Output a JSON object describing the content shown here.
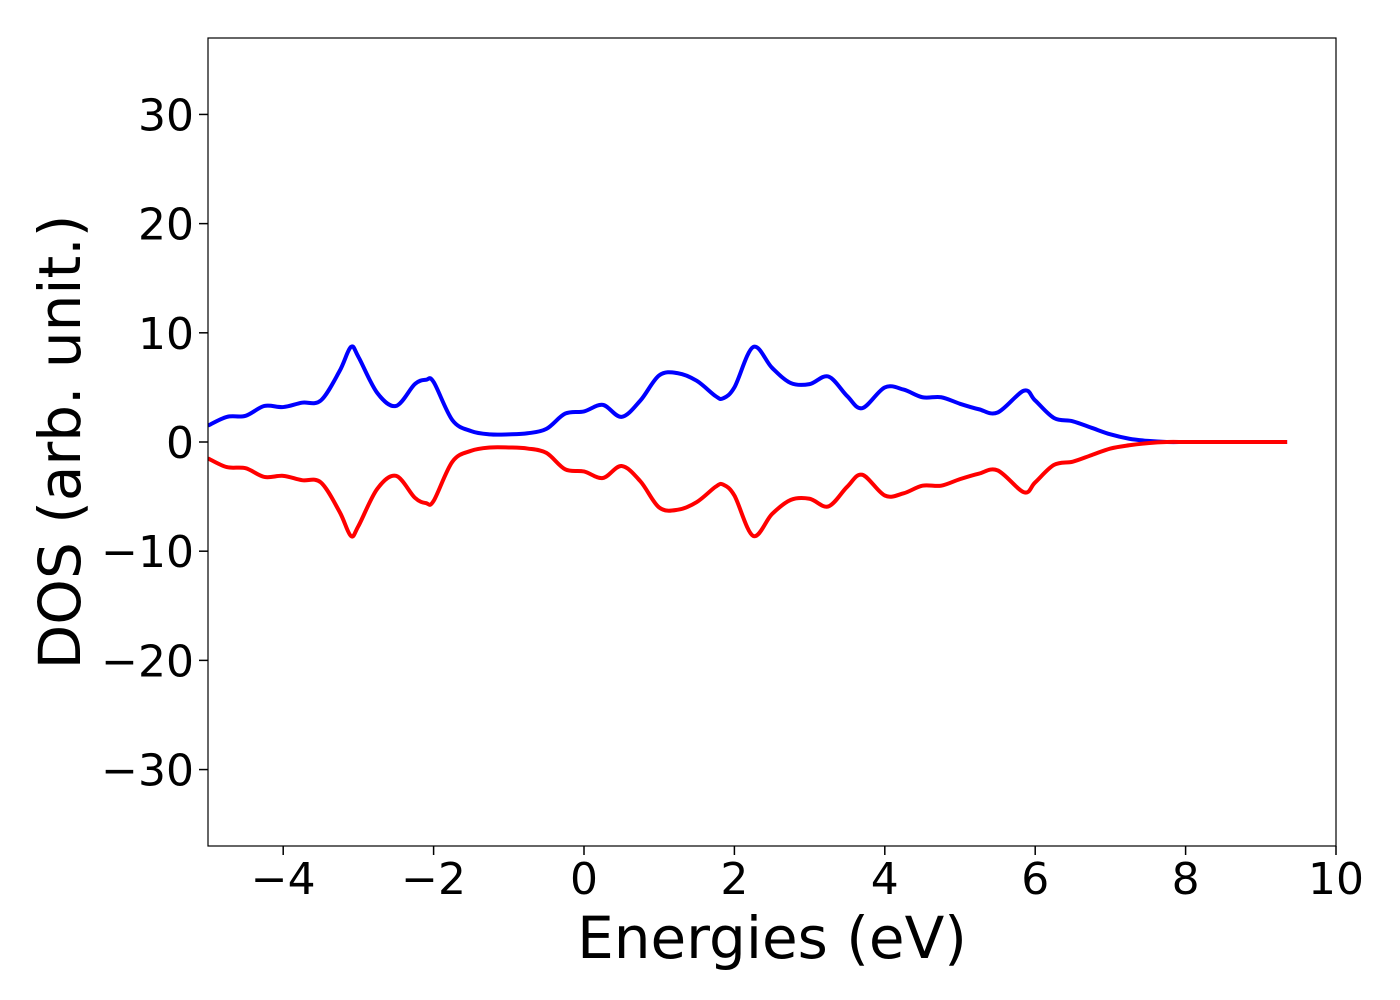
{
  "chart_data": {
    "type": "line",
    "xlabel": "Energies (eV)",
    "ylabel": "DOS (arb. unit.)",
    "x": [
      -5,
      -4.75,
      -4.5,
      -4.25,
      -4,
      -3.75,
      -3.5,
      -3.25,
      -3.1,
      -3,
      -2.75,
      -2.5,
      -2.25,
      -2.1,
      -2,
      -1.75,
      -1.5,
      -1.25,
      -1,
      -0.75,
      -0.5,
      -0.25,
      0,
      0.25,
      0.5,
      0.75,
      1,
      1.25,
      1.5,
      1.75,
      1.85,
      2,
      2.25,
      2.5,
      2.75,
      3,
      3.25,
      3.5,
      3.7,
      4,
      4.25,
      4.5,
      4.75,
      5,
      5.25,
      5.5,
      5.85,
      6,
      6.25,
      6.5,
      6.75,
      7,
      7.25,
      7.5,
      7.75,
      8,
      8.25,
      8.5,
      8.75,
      9,
      9.25,
      9.35
    ],
    "series": [
      {
        "color": "#0000ff",
        "values": [
          1.5,
          2.3,
          2.4,
          3.3,
          3.2,
          3.6,
          3.8,
          6.5,
          8.7,
          7.8,
          4.5,
          3.3,
          5.3,
          5.7,
          5.5,
          2.0,
          1.0,
          0.7,
          0.7,
          0.8,
          1.2,
          2.6,
          2.8,
          3.4,
          2.3,
          3.8,
          6.1,
          6.3,
          5.6,
          4.2,
          4.0,
          5.0,
          8.7,
          6.8,
          5.4,
          5.3,
          6.0,
          4.2,
          3.1,
          5.0,
          4.8,
          4.1,
          4.1,
          3.5,
          3.0,
          2.7,
          4.7,
          3.8,
          2.2,
          1.9,
          1.3,
          0.7,
          0.3,
          0.1,
          0,
          0,
          0,
          0,
          0,
          0,
          0,
          0
        ]
      },
      {
        "color": "#ff0000",
        "values": [
          -1.5,
          -2.3,
          -2.4,
          -3.2,
          -3.1,
          -3.5,
          -3.7,
          -6.4,
          -8.6,
          -7.7,
          -4.3,
          -3.1,
          -5.1,
          -5.6,
          -5.4,
          -1.8,
          -0.8,
          -0.5,
          -0.5,
          -0.6,
          -1.0,
          -2.5,
          -2.7,
          -3.3,
          -2.2,
          -3.6,
          -6.0,
          -6.2,
          -5.5,
          -4.1,
          -3.9,
          -4.9,
          -8.6,
          -6.6,
          -5.3,
          -5.2,
          -5.9,
          -4.1,
          -3.0,
          -4.9,
          -4.7,
          -4.0,
          -4.0,
          -3.4,
          -2.9,
          -2.6,
          -4.6,
          -3.7,
          -2.1,
          -1.8,
          -1.2,
          -0.6,
          -0.3,
          -0.1,
          0,
          0,
          0,
          0,
          0,
          0,
          0,
          0
        ]
      }
    ],
    "xlim": [
      -5,
      10
    ],
    "ylim": [
      -37,
      37
    ],
    "xticks": [
      {
        "value": -4,
        "label": "−4"
      },
      {
        "value": -2,
        "label": "−2"
      },
      0,
      2,
      4,
      6,
      8,
      10
    ],
    "yticks": [
      {
        "value": -30,
        "label": "−30"
      },
      {
        "value": -20,
        "label": "−20"
      },
      {
        "value": -10,
        "label": "−10"
      },
      0,
      10,
      20,
      30
    ],
    "grid": false
  }
}
